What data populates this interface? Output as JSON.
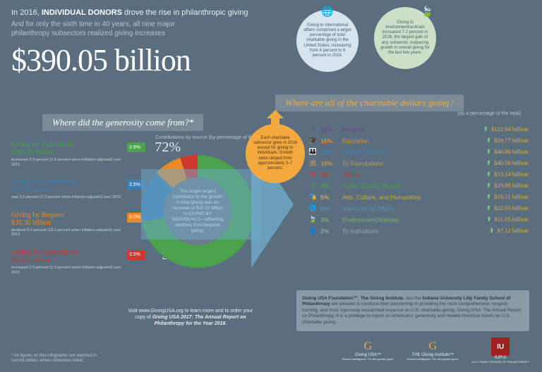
{
  "header": {
    "line1_pre": "In 2016, ",
    "line1_bold": "INDIVIDUAL DONORS",
    "line1_post": " drove the rise in philanthropic giving",
    "line2": "And for only the sixth time in 40 years, all nine major philanthropy subsectors realized giving increases",
    "big": "$390.05 billion"
  },
  "badges": {
    "globe": "Giving to international affairs comprised a larger percentage of total charitable giving in the United States, increasing from 4 percent to 6 percent in 2016.",
    "leaf": "Giving to environment/animals increased 7.2 percent in 2016, the largest gain of any subsector, outpacing growth in overall giving for the last two years."
  },
  "bands": {
    "left": "Where did the generosity come from?*",
    "right": "Where are all of the charitable dollars going?",
    "right_sub": "(as a percentage of the total)"
  },
  "donut_label": "Contributions by source\n(by percentage of the total)",
  "donut_center": "The single largest contributor to the growth in total giving was an increase of $10.53 billion in GIVING BY INDIVIDUALS—offsetting declines from bequest giving.",
  "burst": "Each charitable subsector grew in 2016 except for giving to individuals. Growth rates ranged from approximately 3–7 percent.",
  "donut": {
    "type": "donut",
    "radius": 80,
    "inner": 48,
    "slices": [
      {
        "pct": 72,
        "color": "#4aa24a"
      },
      {
        "pct": 15,
        "color": "#3b7fb5"
      },
      {
        "pct": 8,
        "color": "#e88a2a"
      },
      {
        "pct": 5,
        "color": "#d0382e"
      }
    ]
  },
  "sources": [
    {
      "name": "Giving by Individuals",
      "amt": "$281.86 billion",
      "color": "#4aa24a",
      "chg": "3.9%",
      "pct": "72%",
      "note": "increased 3.9 percent (2.6 percent when inflation-adjusted) over 2015"
    },
    {
      "name": "Giving by Foundations",
      "amt": "$59.28 billion",
      "color": "#3b7fb5",
      "chg": "3.5%",
      "pct": "15%",
      "note": "was 3.5 percent (2.2 percent when inflation-adjusted) over 2015"
    },
    {
      "name": "Giving by Bequest",
      "amt": "$30.36 billion",
      "color": "#e88a2a",
      "chg": "9.0%",
      "pct": "8%",
      "note": "declined 9.0 percent (10.1 percent when inflation-adjusted) over 2015"
    },
    {
      "name": "Giving by Corporations",
      "amt": "$18.55 billion",
      "color": "#d0382e",
      "chg": "3.5%",
      "pct": "5%",
      "note": "increased 3.5 percent (2.3 percent when inflation-adjusted) over 2015"
    }
  ],
  "cats": [
    {
      "ico": "✝",
      "col": "#6b4a8a",
      "pct": "32%",
      "name": "Religion",
      "amt": "$122.94 billion"
    },
    {
      "ico": "🎓",
      "col": "#e88a2a",
      "pct": "15%",
      "name": "Education",
      "amt": "$59.77 billion"
    },
    {
      "ico": "👪",
      "col": "#3b7fb5",
      "pct": "12%",
      "name": "Human Services",
      "amt": "$46.80 billion"
    },
    {
      "ico": "🏛",
      "col": "#c79a4a",
      "pct": "10%",
      "name": "To Foundations",
      "amt": "$40.56 billion"
    },
    {
      "ico": "✚",
      "col": "#d0382e",
      "pct": "8%",
      "name": "Health",
      "amt": "$33.14 billion"
    },
    {
      "ico": "$",
      "col": "#4aa24a",
      "pct": "8%",
      "name": "Public-Society Benefit",
      "amt": "$29.89 billion"
    },
    {
      "ico": "🎭",
      "col": "#d4a93f",
      "pct": "5%",
      "name": "Arts, Culture, and Humanities",
      "amt": "$18.21 billion"
    },
    {
      "ico": "🌐",
      "col": "#5a8fb5",
      "pct": "6%",
      "name": "International Affairs",
      "amt": "$22.03 billion"
    },
    {
      "ico": "🍃",
      "col": "#7fb069",
      "pct": "3%",
      "name": "Environment/Animals",
      "amt": "$11.05 billion"
    },
    {
      "ico": "👤",
      "col": "#9aa5ad",
      "pct": "2%",
      "name": "To Individuals",
      "amt": "$7.12 billion"
    }
  ],
  "footer_box": {
    "b1": "Giving USA Foundation™",
    "b2": "The Giving Institute",
    "b3": "Indiana University Lilly Family School of Philanthropy",
    "rest": " are pleased to continue their partnership in providing the most comprehensive, longest-running, and most rigorously researched resource on U.S. charitable giving, Giving USA: The Annual Report on Philanthropy. It is a privilege to report on Americans' generosity and related historical trends on U.S. charitable giving."
  },
  "visit": {
    "pre": "Visit www.GivingUSA.org to learn more and to order your copy of ",
    "ital": "Giving USA 2017: The Annual Report on Philanthropy for the Year 2016."
  },
  "footnote": "* All figures on this infographic are reported in current dollars unless otherwise noted.",
  "logos": {
    "g1": "Giving USA™",
    "g1s": "Shared intelligence. For the greater good.",
    "g2": "THE Giving Institute™",
    "g2s": "Shared intelligence. For the greater good.",
    "iu": "IUPUI",
    "ius": "LILLY FAMILY SCHOOL OF PHILANTHROPY"
  }
}
